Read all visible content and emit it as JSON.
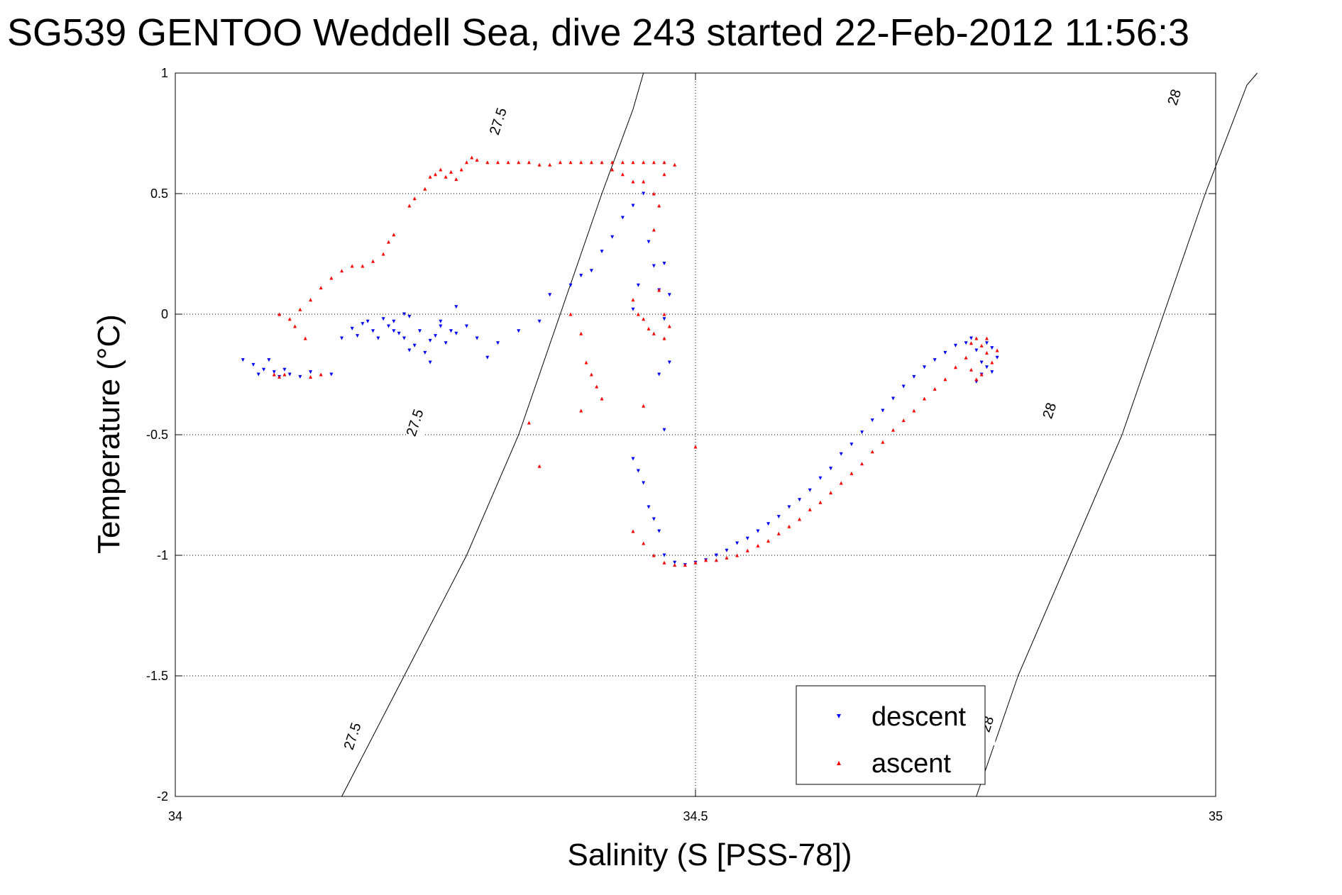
{
  "chart_data": {
    "type": "scatter",
    "title": "SG539 GENTOO Weddell Sea, dive 243 started 22-Feb-2012 11:56:3",
    "xlabel": "Salinity (S [PSS-78])",
    "ylabel": "Temperature (°C)",
    "xlim": [
      34,
      35
    ],
    "ylim": [
      -2,
      1
    ],
    "xticks": [
      "34",
      "34.5",
      "35"
    ],
    "xtick_values": [
      34,
      34.5,
      35
    ],
    "yticks": [
      "1",
      "0.5",
      "0",
      "-0.5",
      "-1",
      "-1.5",
      "-2"
    ],
    "ytick_values": [
      1,
      0.5,
      0,
      -0.5,
      -1,
      -1.5,
      -2
    ],
    "grid": true,
    "legend_position": "bottom-right",
    "contours": [
      {
        "level": "27.5",
        "points": [
          [
            34.16,
            -2.0
          ],
          [
            34.22,
            -1.5
          ],
          [
            34.28,
            -1.0
          ],
          [
            34.33,
            -0.5
          ],
          [
            34.37,
            0.0
          ],
          [
            34.41,
            0.5
          ],
          [
            34.44,
            0.85
          ],
          [
            34.45,
            1.0
          ]
        ],
        "labels": [
          {
            "x": 34.17,
            "y": -1.75
          },
          {
            "x": 34.23,
            "y": -0.45
          },
          {
            "x": 34.31,
            "y": 0.8
          }
        ]
      },
      {
        "level": "28",
        "points": [
          [
            34.77,
            -2.0
          ],
          [
            34.81,
            -1.5
          ],
          [
            34.86,
            -1.0
          ],
          [
            34.91,
            -0.5
          ],
          [
            34.95,
            0.0
          ],
          [
            34.99,
            0.5
          ],
          [
            35.03,
            0.95
          ],
          [
            35.04,
            1.0
          ]
        ],
        "labels": [
          {
            "x": 34.78,
            "y": -1.7
          },
          {
            "x": 34.84,
            "y": -0.4
          },
          {
            "x": 34.96,
            "y": 0.9
          }
        ]
      }
    ],
    "series": [
      {
        "name": "descent",
        "color": "#0000ff",
        "marker": "triangle-down",
        "points": [
          [
            34.065,
            -0.19
          ],
          [
            34.075,
            -0.21
          ],
          [
            34.08,
            -0.25
          ],
          [
            34.085,
            -0.23
          ],
          [
            34.09,
            -0.19
          ],
          [
            34.095,
            -0.24
          ],
          [
            34.1,
            -0.26
          ],
          [
            34.105,
            -0.23
          ],
          [
            34.11,
            -0.25
          ],
          [
            34.12,
            -0.26
          ],
          [
            34.13,
            -0.24
          ],
          [
            34.15,
            -0.25
          ],
          [
            34.16,
            -0.1
          ],
          [
            34.17,
            -0.06
          ],
          [
            34.175,
            -0.09
          ],
          [
            34.18,
            -0.04
          ],
          [
            34.19,
            -0.07
          ],
          [
            34.195,
            -0.1
          ],
          [
            34.2,
            -0.02
          ],
          [
            34.205,
            -0.05
          ],
          [
            34.21,
            -0.03
          ],
          [
            34.22,
            0.0
          ],
          [
            34.225,
            -0.01
          ],
          [
            34.185,
            -0.03
          ],
          [
            34.21,
            -0.07
          ],
          [
            34.215,
            -0.08
          ],
          [
            34.22,
            -0.1
          ],
          [
            34.225,
            -0.15
          ],
          [
            34.23,
            -0.13
          ],
          [
            34.235,
            -0.07
          ],
          [
            34.24,
            -0.16
          ],
          [
            34.245,
            -0.11
          ],
          [
            34.25,
            -0.09
          ],
          [
            34.255,
            -0.03
          ],
          [
            34.26,
            -0.12
          ],
          [
            34.265,
            -0.07
          ],
          [
            34.27,
            -0.08
          ],
          [
            34.245,
            -0.2
          ],
          [
            34.255,
            -0.05
          ],
          [
            34.27,
            0.03
          ],
          [
            34.28,
            -0.05
          ],
          [
            34.29,
            -0.1
          ],
          [
            34.3,
            -0.18
          ],
          [
            34.31,
            -0.12
          ],
          [
            34.33,
            -0.07
          ],
          [
            34.35,
            -0.03
          ],
          [
            34.36,
            0.08
          ],
          [
            34.38,
            0.12
          ],
          [
            34.39,
            0.16
          ],
          [
            34.4,
            0.18
          ],
          [
            34.41,
            0.26
          ],
          [
            34.42,
            0.32
          ],
          [
            34.43,
            0.4
          ],
          [
            34.44,
            0.45
          ],
          [
            34.45,
            0.5
          ],
          [
            34.455,
            0.3
          ],
          [
            34.46,
            0.2
          ],
          [
            34.465,
            0.1
          ],
          [
            34.47,
            0.21
          ],
          [
            34.475,
            0.08
          ],
          [
            34.445,
            0.12
          ],
          [
            34.44,
            0.02
          ],
          [
            34.47,
            -0.02
          ],
          [
            34.475,
            -0.2
          ],
          [
            34.465,
            -0.25
          ],
          [
            34.47,
            -0.48
          ],
          [
            34.44,
            -0.6
          ],
          [
            34.445,
            -0.65
          ],
          [
            34.45,
            -0.7
          ],
          [
            34.455,
            -0.8
          ],
          [
            34.46,
            -0.85
          ],
          [
            34.465,
            -0.9
          ],
          [
            34.47,
            -1.0
          ],
          [
            34.48,
            -1.03
          ],
          [
            34.49,
            -1.04
          ],
          [
            34.5,
            -1.03
          ],
          [
            34.51,
            -1.02
          ],
          [
            34.52,
            -1.0
          ],
          [
            34.53,
            -0.98
          ],
          [
            34.54,
            -0.95
          ],
          [
            34.55,
            -0.93
          ],
          [
            34.56,
            -0.9
          ],
          [
            34.57,
            -0.87
          ],
          [
            34.58,
            -0.84
          ],
          [
            34.59,
            -0.8
          ],
          [
            34.6,
            -0.77
          ],
          [
            34.61,
            -0.73
          ],
          [
            34.62,
            -0.68
          ],
          [
            34.63,
            -0.64
          ],
          [
            34.64,
            -0.58
          ],
          [
            34.65,
            -0.54
          ],
          [
            34.66,
            -0.49
          ],
          [
            34.67,
            -0.44
          ],
          [
            34.68,
            -0.4
          ],
          [
            34.69,
            -0.35
          ],
          [
            34.7,
            -0.3
          ],
          [
            34.71,
            -0.26
          ],
          [
            34.72,
            -0.22
          ],
          [
            34.73,
            -0.19
          ],
          [
            34.74,
            -0.16
          ],
          [
            34.75,
            -0.13
          ],
          [
            34.76,
            -0.12
          ],
          [
            34.765,
            -0.1
          ],
          [
            34.77,
            -0.15
          ],
          [
            34.775,
            -0.2
          ],
          [
            34.78,
            -0.22
          ],
          [
            34.785,
            -0.24
          ],
          [
            34.79,
            -0.18
          ],
          [
            34.78,
            -0.12
          ],
          [
            34.775,
            -0.25
          ],
          [
            34.77,
            -0.28
          ],
          [
            34.785,
            -0.14
          ]
        ]
      },
      {
        "name": "ascent",
        "color": "#ff0000",
        "marker": "triangle-up",
        "points": [
          [
            34.095,
            -0.25
          ],
          [
            34.1,
            -0.26
          ],
          [
            34.105,
            -0.25
          ],
          [
            34.13,
            -0.26
          ],
          [
            34.14,
            -0.25
          ],
          [
            34.1,
            0.0
          ],
          [
            34.11,
            -0.02
          ],
          [
            34.115,
            -0.05
          ],
          [
            34.12,
            0.02
          ],
          [
            34.125,
            -0.1
          ],
          [
            34.13,
            0.06
          ],
          [
            34.14,
            0.11
          ],
          [
            34.15,
            0.15
          ],
          [
            34.16,
            0.18
          ],
          [
            34.17,
            0.2
          ],
          [
            34.18,
            0.2
          ],
          [
            34.19,
            0.22
          ],
          [
            34.2,
            0.25
          ],
          [
            34.205,
            0.3
          ],
          [
            34.21,
            0.33
          ],
          [
            34.225,
            0.45
          ],
          [
            34.23,
            0.48
          ],
          [
            34.24,
            0.52
          ],
          [
            34.245,
            0.57
          ],
          [
            34.25,
            0.58
          ],
          [
            34.255,
            0.6
          ],
          [
            34.26,
            0.57
          ],
          [
            34.265,
            0.59
          ],
          [
            34.27,
            0.56
          ],
          [
            34.275,
            0.6
          ],
          [
            34.28,
            0.63
          ],
          [
            34.285,
            0.65
          ],
          [
            34.29,
            0.64
          ],
          [
            34.3,
            0.63
          ],
          [
            34.31,
            0.63
          ],
          [
            34.32,
            0.63
          ],
          [
            34.33,
            0.63
          ],
          [
            34.34,
            0.63
          ],
          [
            34.35,
            0.62
          ],
          [
            34.36,
            0.62
          ],
          [
            34.37,
            0.63
          ],
          [
            34.38,
            0.63
          ],
          [
            34.39,
            0.63
          ],
          [
            34.4,
            0.63
          ],
          [
            34.41,
            0.63
          ],
          [
            34.42,
            0.63
          ],
          [
            34.43,
            0.63
          ],
          [
            34.44,
            0.63
          ],
          [
            34.45,
            0.63
          ],
          [
            34.46,
            0.63
          ],
          [
            34.47,
            0.63
          ],
          [
            34.48,
            0.62
          ],
          [
            34.42,
            0.6
          ],
          [
            34.43,
            0.58
          ],
          [
            34.44,
            0.55
          ],
          [
            34.45,
            0.55
          ],
          [
            34.46,
            0.5
          ],
          [
            34.47,
            0.58
          ],
          [
            34.465,
            0.45
          ],
          [
            34.46,
            0.35
          ],
          [
            34.44,
            0.06
          ],
          [
            34.445,
            0.0
          ],
          [
            34.45,
            -0.02
          ],
          [
            34.455,
            -0.06
          ],
          [
            34.46,
            -0.08
          ],
          [
            34.465,
            0.1
          ],
          [
            34.47,
            0.0
          ],
          [
            34.475,
            -0.05
          ],
          [
            34.38,
            0.0
          ],
          [
            34.39,
            -0.08
          ],
          [
            34.395,
            -0.2
          ],
          [
            34.4,
            -0.25
          ],
          [
            34.405,
            -0.3
          ],
          [
            34.41,
            -0.35
          ],
          [
            34.39,
            -0.4
          ],
          [
            34.45,
            -0.38
          ],
          [
            34.34,
            -0.45
          ],
          [
            34.47,
            -0.1
          ],
          [
            34.5,
            -0.55
          ],
          [
            34.35,
            -0.63
          ],
          [
            34.44,
            -0.9
          ],
          [
            34.45,
            -0.95
          ],
          [
            34.46,
            -1.0
          ],
          [
            34.47,
            -1.03
          ],
          [
            34.48,
            -1.04
          ],
          [
            34.49,
            -1.04
          ],
          [
            34.5,
            -1.03
          ],
          [
            34.51,
            -1.02
          ],
          [
            34.52,
            -1.02
          ],
          [
            34.53,
            -1.01
          ],
          [
            34.54,
            -1.0
          ],
          [
            34.55,
            -0.98
          ],
          [
            34.56,
            -0.96
          ],
          [
            34.57,
            -0.94
          ],
          [
            34.58,
            -0.91
          ],
          [
            34.59,
            -0.88
          ],
          [
            34.6,
            -0.85
          ],
          [
            34.61,
            -0.81
          ],
          [
            34.62,
            -0.78
          ],
          [
            34.63,
            -0.74
          ],
          [
            34.64,
            -0.7
          ],
          [
            34.65,
            -0.66
          ],
          [
            34.66,
            -0.62
          ],
          [
            34.67,
            -0.57
          ],
          [
            34.68,
            -0.53
          ],
          [
            34.69,
            -0.48
          ],
          [
            34.7,
            -0.44
          ],
          [
            34.71,
            -0.4
          ],
          [
            34.72,
            -0.35
          ],
          [
            34.73,
            -0.31
          ],
          [
            34.74,
            -0.27
          ],
          [
            34.75,
            -0.22
          ],
          [
            34.76,
            -0.18
          ],
          [
            34.765,
            -0.12
          ],
          [
            34.77,
            -0.1
          ],
          [
            34.775,
            -0.13
          ],
          [
            34.78,
            -0.16
          ],
          [
            34.785,
            -0.2
          ],
          [
            34.775,
            -0.25
          ],
          [
            34.77,
            -0.27
          ],
          [
            34.765,
            -0.23
          ],
          [
            34.78,
            -0.1
          ],
          [
            34.79,
            -0.15
          ]
        ]
      }
    ]
  }
}
